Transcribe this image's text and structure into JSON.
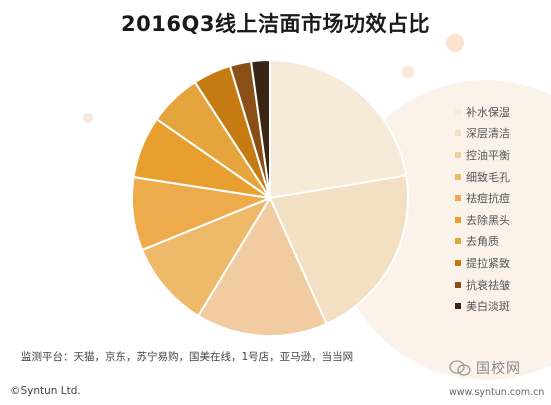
{
  "title": "2016Q3线上洁面市场功效占比",
  "chart_data": {
    "type": "pie",
    "categories": [
      "补水保湿",
      "深层清洁",
      "控油平衡",
      "细致毛孔",
      "祛痘抗痘",
      "去除黑头",
      "去角质",
      "提拉紧致",
      "抗衰祛皱",
      "美白淡斑"
    ],
    "values": [
      22.5,
      21.0,
      15.5,
      10.2,
      8.6,
      7.3,
      6.2,
      4.5,
      2.5,
      2.2
    ],
    "colors": [
      "#f6ead8",
      "#f3dfc1",
      "#f0ccA0",
      "#efb96a",
      "#edab4b",
      "#e99f2f",
      "#e6a53c",
      "#c67a12",
      "#8a4e17",
      "#3a2414"
    ],
    "legend_position": "right"
  },
  "source": "监测平台：天猫，京东，苏宁易购，国美在线，1号店，亚马逊，当当网",
  "copyright": "©Syntun Ltd.",
  "watermark": "国校网",
  "site": "www.syntun.com.cn"
}
